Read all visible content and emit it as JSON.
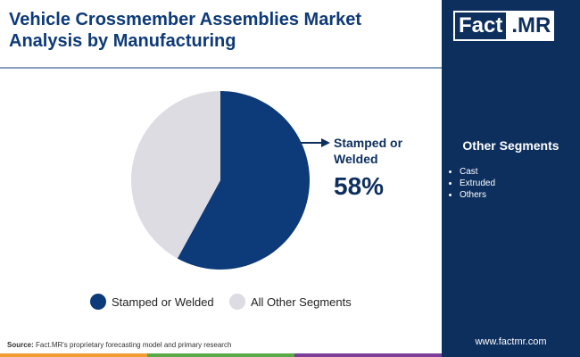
{
  "chart_data": {
    "type": "pie",
    "title": "Vehicle Crossmember Assemblies Market Analysis by Manufacturing",
    "categories": [
      "Stamped or Welded",
      "All Other Segments"
    ],
    "values": [
      58,
      42
    ],
    "value_labels": [
      "58%",
      null
    ],
    "colors": [
      "#0d3a78",
      "#dcdce2"
    ],
    "legend": "bottom"
  },
  "logo": {
    "left": "Fact",
    "right": ".MR"
  },
  "sidebar": {
    "title": "Other Segments",
    "items": [
      "Cast",
      "Extruded",
      "Others"
    ]
  },
  "source": {
    "label": "Source:",
    "text": "Fact.MR's proprietary forecasting model and primary research"
  },
  "website": "www.factmr.com"
}
